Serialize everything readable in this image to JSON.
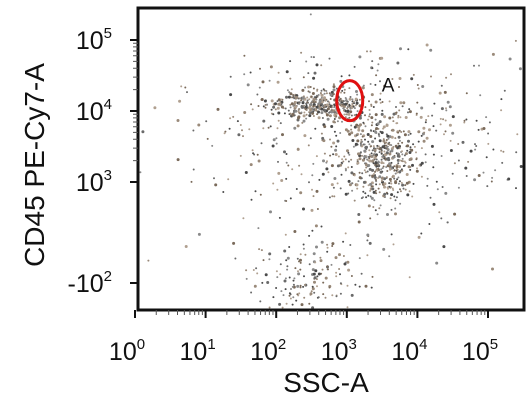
{
  "chart_data": {
    "type": "scatter",
    "title": "",
    "xlabel": "SSC-A",
    "ylabel": "CD45 PE-Cy7-A",
    "x_scale": "log",
    "y_scale": "biexponential",
    "xlim": [
      1,
      100000
    ],
    "ylim": [
      -300,
      200000
    ],
    "grid": false,
    "x_ticks": [
      {
        "value": 1,
        "base": "10",
        "exp": "0"
      },
      {
        "value": 10,
        "base": "10",
        "exp": "1"
      },
      {
        "value": 100,
        "base": "10",
        "exp": "2"
      },
      {
        "value": 1000,
        "base": "10",
        "exp": "3"
      },
      {
        "value": 10000,
        "base": "10",
        "exp": "4"
      },
      {
        "value": 100000,
        "base": "10",
        "exp": "5"
      }
    ],
    "y_ticks": [
      {
        "value": 100000,
        "base": "10",
        "exp": "5"
      },
      {
        "value": 10000,
        "base": "10",
        "exp": "4"
      },
      {
        "value": 1000,
        "base": "10",
        "exp": "3"
      },
      {
        "value": -100,
        "base": "-10",
        "exp": "2"
      }
    ],
    "populations": [
      {
        "center": [
          400,
          12000
        ],
        "spread": [
          0.16,
          0.1
        ],
        "count": 380
      },
      {
        "center": [
          3000,
          2000
        ],
        "spread": [
          0.11,
          0.3
        ],
        "count": 420
      },
      {
        "center": [
          1200,
          5000
        ],
        "spread": [
          0.55,
          0.45
        ],
        "count": 300
      },
      {
        "center": [
          300,
          -80
        ],
        "spread": [
          0.18,
          0.3
        ],
        "count": 160
      },
      {
        "center": [
          2500,
          25000
        ],
        "spread": [
          0.5,
          0.35
        ],
        "count": 90
      },
      {
        "center": [
          1500,
          400
        ],
        "spread": [
          0.6,
          0.6
        ],
        "count": 140
      }
    ],
    "gates": [
      {
        "name": "A",
        "center": [
          1100,
          14000
        ],
        "color": "#e01010"
      }
    ],
    "point_color": "#5a5a5a"
  }
}
